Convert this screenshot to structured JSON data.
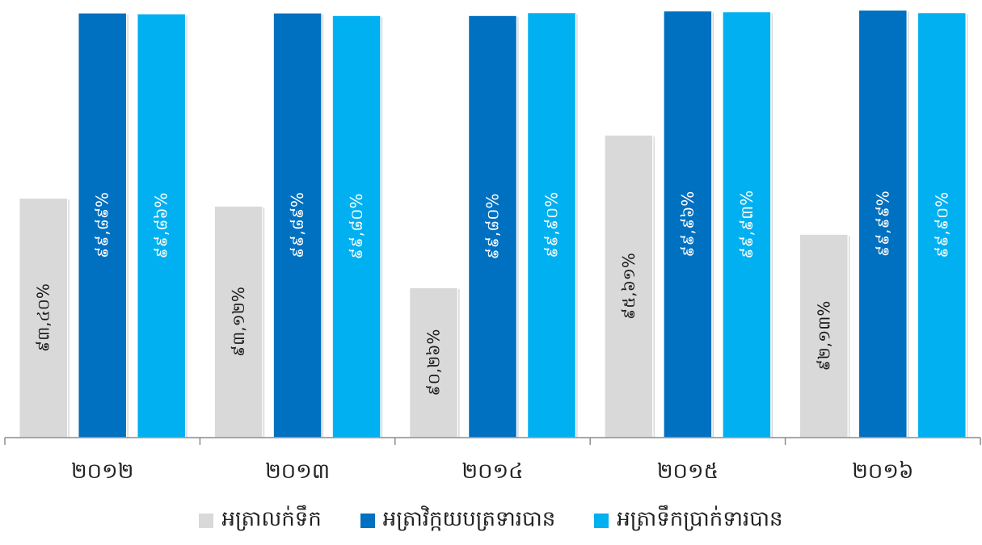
{
  "chart_data": {
    "type": "bar",
    "title": "",
    "xlabel": "",
    "ylabel": "",
    "categories": [
      "២០១២",
      "២០១៣",
      "២០១៤",
      "២០១៥",
      "២០១៦"
    ],
    "ylim": [
      85,
      100
    ],
    "grid": false,
    "legend_position": "bottom",
    "series": [
      {
        "name": "អត្រាលក់ទឹក",
        "color": "#d9d9d9",
        "label_color": "#1a1a1a",
        "values": [
          93.4,
          93.12,
          90.26,
          95.61,
          92.13
        ],
        "labels": [
          "៩៣,៤០%",
          "៩៣,១២%",
          "៩០,២៦%",
          "៩៥,៦១%",
          "៩២,១៣%"
        ]
      },
      {
        "name": "អត្រាវិក្កយបត្រទារបាន",
        "color": "#0070c0",
        "label_color": "#ffffff",
        "values": [
          99.89,
          99.89,
          99.8,
          99.96,
          99.99
        ],
        "labels": [
          "៩៩,៨៩%",
          "៩៩,៨៩%",
          "៩៩,៨០%",
          "៩៩,៩៦%",
          "៩៩,៩៩%"
        ]
      },
      {
        "name": "អត្រាទឹកប្រាក់ទារបាន",
        "color": "#00b0f0",
        "label_color": "#ffffff",
        "values": [
          99.86,
          99.8,
          99.9,
          99.93,
          99.9
        ],
        "labels": [
          "៩៩,៨៦%",
          "៩៩,៨០%",
          "៩៩,៩០%",
          "៩៩,៩៣%",
          "៩៩,៩០%"
        ]
      }
    ]
  }
}
